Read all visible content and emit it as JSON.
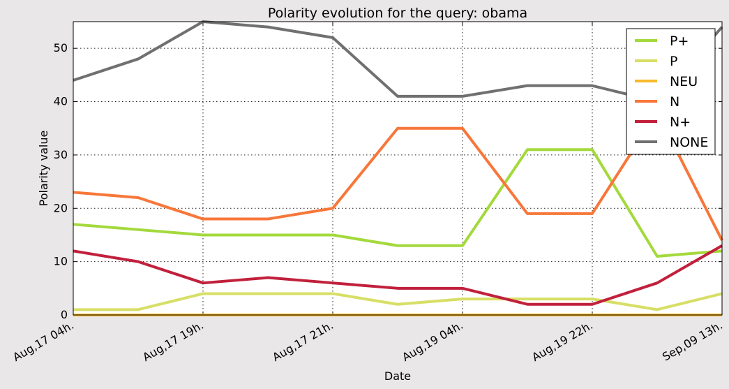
{
  "chart_data": {
    "type": "line",
    "title": "Polarity evolution for the query: obama",
    "xlabel": "Date",
    "ylabel": "Polarity value",
    "ylim": [
      0,
      55
    ],
    "yticks": [
      0,
      10,
      20,
      30,
      40,
      50
    ],
    "x_tick_labels": [
      "Aug,17 04h.",
      "Aug,17 19h.",
      "Aug,17 21h.",
      "Aug,19 04h.",
      "Aug,19 22h.",
      "Sep,09 13h."
    ],
    "grid": true,
    "legend_position": "top-right",
    "series": [
      {
        "name": "P+",
        "color": "#a4d93c",
        "values": [
          17,
          16,
          15,
          15,
          15,
          13,
          13,
          31,
          31,
          11,
          12
        ]
      },
      {
        "name": "P",
        "color": "#d7df66",
        "values": [
          1,
          1,
          4,
          4,
          4,
          2,
          3,
          3,
          3,
          1,
          4
        ]
      },
      {
        "name": "NEU",
        "color": "#f8b92a",
        "values": [
          0,
          0,
          0,
          0,
          0,
          0,
          0,
          0,
          0,
          0,
          0
        ]
      },
      {
        "name": "N",
        "color": "#f7773a",
        "values": [
          23,
          22,
          18,
          18,
          20,
          35,
          35,
          19,
          19,
          38,
          14
        ]
      },
      {
        "name": "N+",
        "color": "#c1203c",
        "values": [
          12,
          10,
          6,
          7,
          6,
          5,
          5,
          2,
          2,
          6,
          13
        ]
      },
      {
        "name": "NONE",
        "color": "#707070",
        "values": [
          44,
          48,
          55,
          54,
          52,
          41,
          41,
          43,
          43,
          40,
          54
        ]
      }
    ]
  }
}
